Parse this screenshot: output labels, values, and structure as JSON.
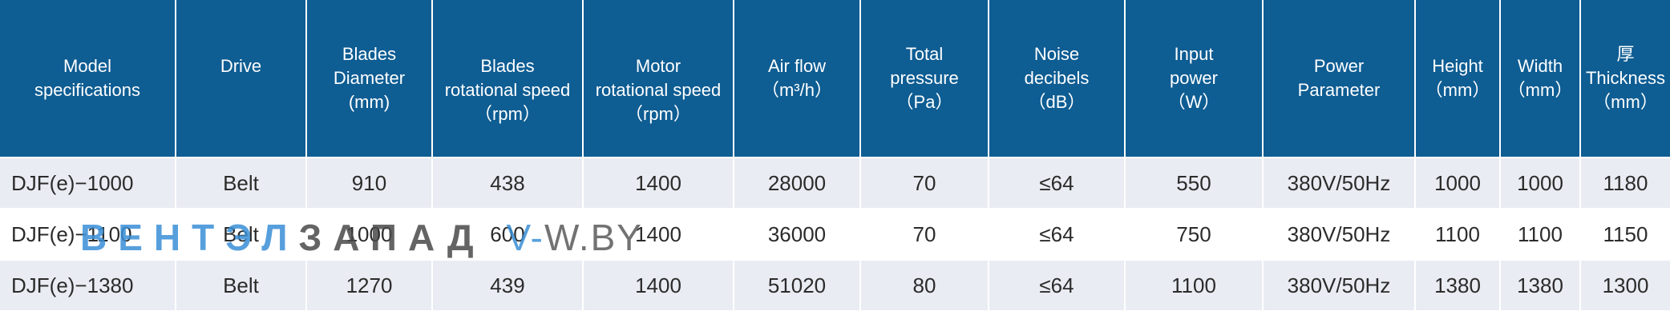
{
  "header": {
    "columns": [
      {
        "lines": [
          "Model",
          "specifications"
        ]
      },
      {
        "lines": [
          "Drive"
        ]
      },
      {
        "lines": [
          "Blades",
          "Diameter",
          "(mm)"
        ]
      },
      {
        "lines": [
          "Blades",
          "rotational speed",
          "（rpm）"
        ]
      },
      {
        "lines": [
          "Motor",
          "rotational speed",
          "（rpm）"
        ]
      },
      {
        "lines": [
          "Air flow",
          "（m³/h）"
        ]
      },
      {
        "lines": [
          "Total",
          "pressure",
          "（Pa）"
        ]
      },
      {
        "lines": [
          "Noise",
          "decibels",
          "（dB）"
        ]
      },
      {
        "lines": [
          "Input",
          "power",
          "（W）"
        ]
      },
      {
        "lines": [
          "Power",
          "Parameter"
        ]
      },
      {
        "lines": [
          "Height",
          "（mm）"
        ]
      },
      {
        "lines": [
          "Width",
          "（mm）"
        ]
      },
      {
        "lines": [
          "厚",
          "Thickness",
          "（mm）"
        ]
      }
    ]
  },
  "rows": [
    [
      "DJF(e)−1000",
      "Belt",
      "910",
      "438",
      "1400",
      "28000",
      "70",
      "≤64",
      "550",
      "380V/50Hz",
      "1000",
      "1000",
      "1180"
    ],
    [
      "DJF(e)−1100",
      "Belt",
      "1000",
      "600",
      "1400",
      "36000",
      "70",
      "≤64",
      "750",
      "380V/50Hz",
      "1100",
      "1100",
      "1150"
    ],
    [
      "DJF(e)−1380",
      "Belt",
      "1270",
      "439",
      "1400",
      "51020",
      "80",
      "≤64",
      "1100",
      "380V/50Hz",
      "1380",
      "1380",
      "1300"
    ]
  ],
  "watermark": {
    "part1": "ВЕНТЭЛ",
    "part2": "ЗАПАД",
    "part3": "V-",
    "part4": "W.BY"
  },
  "colors": {
    "header_bg": "#0e5d93",
    "row_odd_bg": "#e9ecf2",
    "row_even_bg": "#ffffff"
  }
}
